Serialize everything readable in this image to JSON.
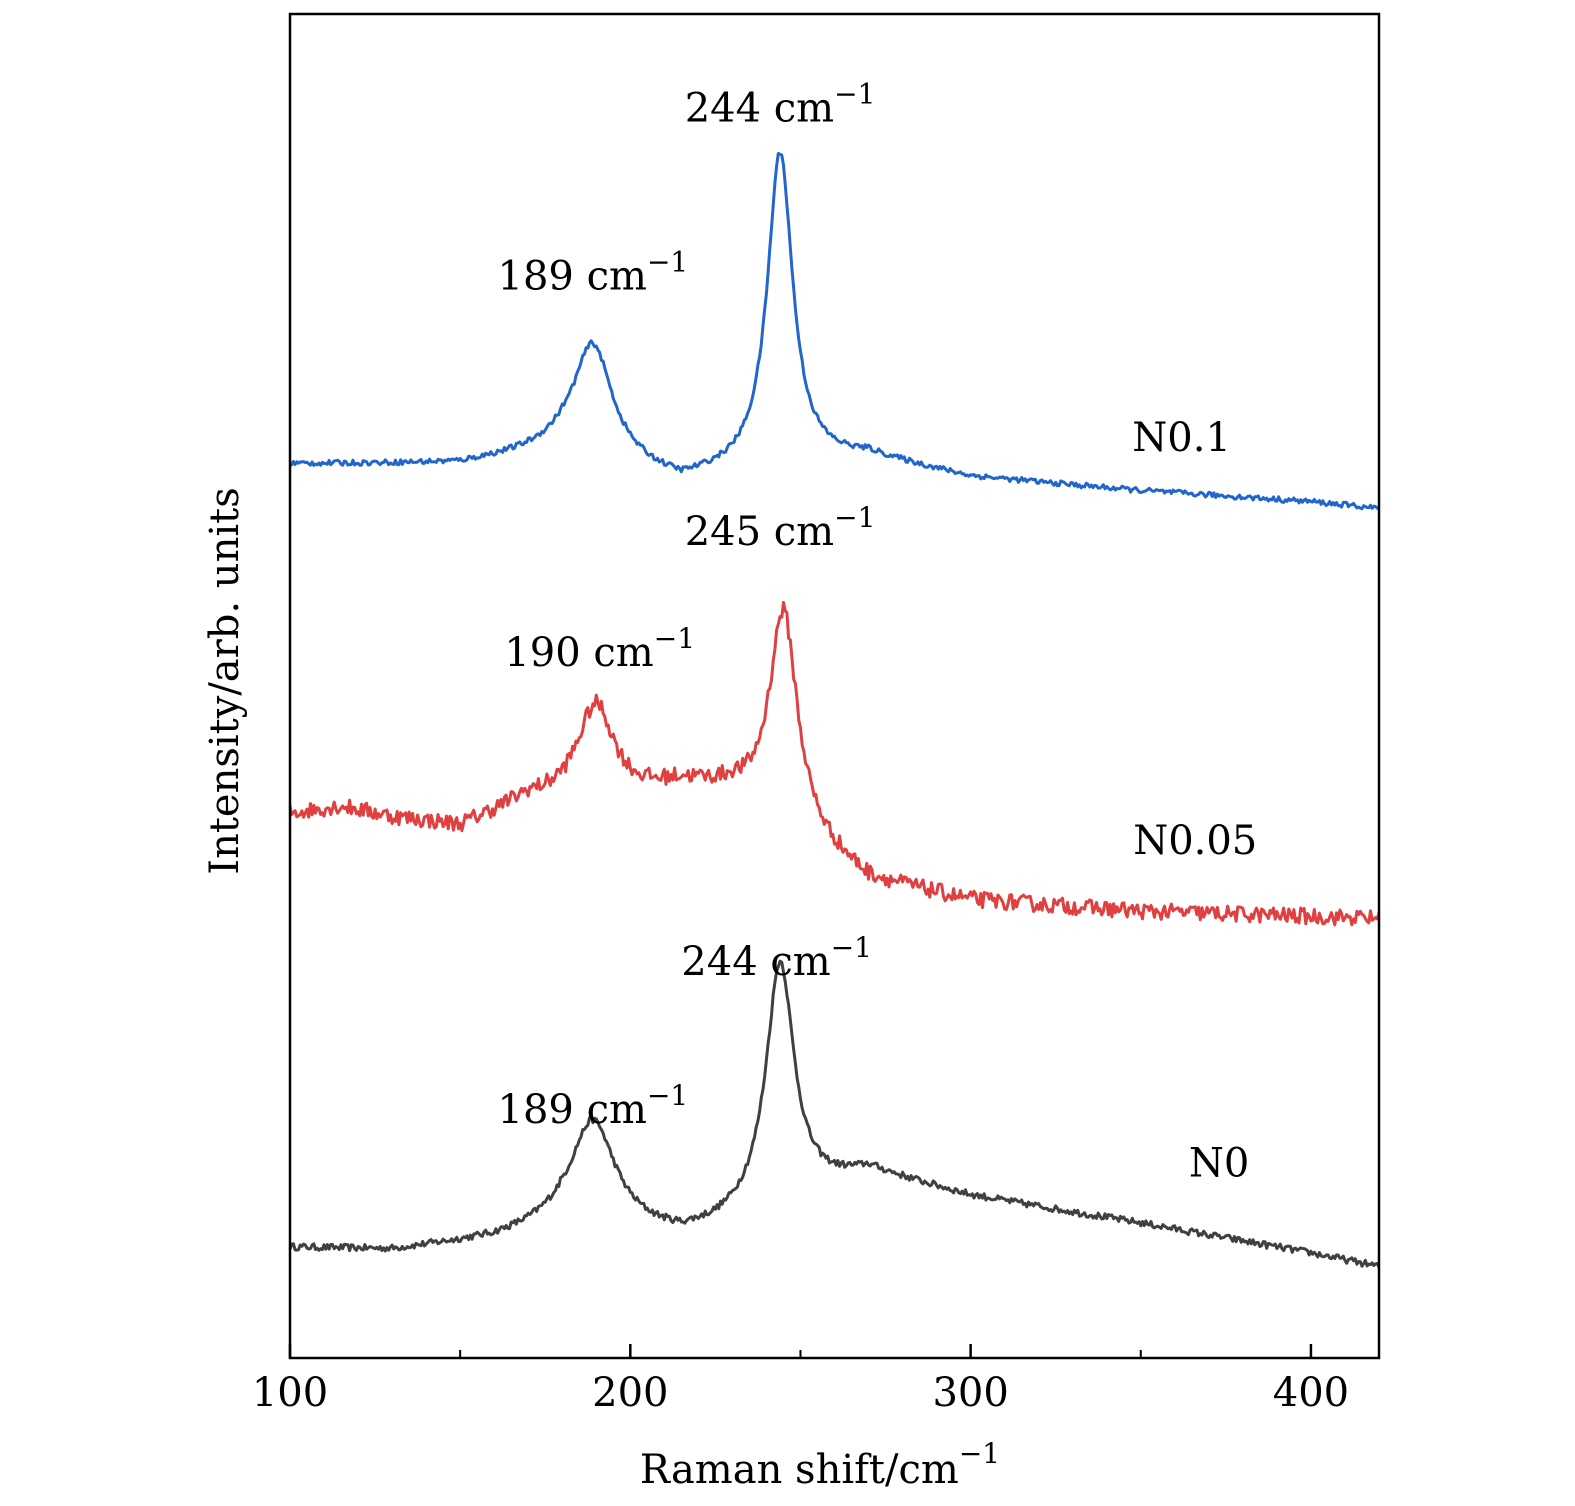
{
  "chart_data": {
    "type": "line",
    "title": "",
    "xlabel": "Raman shift/cm",
    "xlabel_sup": "−1",
    "ylabel": "Intensity/arb. units",
    "xlim": [
      100,
      420
    ],
    "ylim": [
      0,
      10
    ],
    "x_ticks": [
      100,
      200,
      300,
      400
    ],
    "x_minor_ticks": [
      150,
      250,
      350
    ],
    "y_ticks": [],
    "grid": false,
    "legend": "none",
    "series": [
      {
        "name": "N0",
        "color": "#404040",
        "baseline": [
          [
            100,
            0.82
          ],
          [
            130,
            0.8
          ],
          [
            160,
            0.88
          ],
          [
            180,
            0.98
          ],
          [
            215,
            0.9
          ],
          [
            225,
            0.96
          ],
          [
            270,
            1.38
          ],
          [
            300,
            1.2
          ],
          [
            350,
            1.0
          ],
          [
            400,
            0.78
          ],
          [
            420,
            0.68
          ]
        ],
        "peaks": [
          {
            "x": 189,
            "y": 0.8,
            "width": 8
          },
          {
            "x": 244,
            "y": 1.8,
            "width": 5
          }
        ],
        "noise": 0.025
      },
      {
        "name": "N0.05",
        "color": "#e04040",
        "baseline": [
          [
            100,
            4.05
          ],
          [
            115,
            4.1
          ],
          [
            130,
            4.02
          ],
          [
            150,
            3.95
          ],
          [
            170,
            4.15
          ],
          [
            195,
            4.1
          ],
          [
            215,
            4.25
          ],
          [
            230,
            4.2
          ],
          [
            270,
            3.55
          ],
          [
            300,
            3.4
          ],
          [
            350,
            3.32
          ],
          [
            420,
            3.27
          ]
        ],
        "peaks": [
          {
            "x": 190,
            "y": 0.75,
            "width": 7
          },
          {
            "x": 245,
            "y": 1.6,
            "width": 5
          }
        ],
        "noise": 0.06
      },
      {
        "name": "N0.1",
        "color": "#2266cc",
        "baseline": [
          [
            100,
            6.65
          ],
          [
            150,
            6.65
          ],
          [
            180,
            6.75
          ],
          [
            215,
            6.5
          ],
          [
            225,
            6.55
          ],
          [
            270,
            6.7
          ],
          [
            300,
            6.55
          ],
          [
            350,
            6.45
          ],
          [
            400,
            6.37
          ],
          [
            420,
            6.32
          ]
        ],
        "peaks": [
          {
            "x": 189,
            "y": 0.85,
            "width": 7
          },
          {
            "x": 244,
            "y": 2.35,
            "width": 4.5
          }
        ],
        "noise": 0.02
      }
    ],
    "annotations": [
      {
        "text": "244 cm",
        "sup": "−1",
        "x": 244,
        "y": 9.2
      },
      {
        "text": "189 cm",
        "sup": "−1",
        "x": 189,
        "y": 7.95
      },
      {
        "text": "N0.1",
        "x": 362,
        "y": 6.75
      },
      {
        "text": "245 cm",
        "sup": "−1",
        "x": 244,
        "y": 6.05
      },
      {
        "text": "190 cm",
        "sup": "−1",
        "x": 191,
        "y": 5.15
      },
      {
        "text": "N0.05",
        "x": 366,
        "y": 3.75
      },
      {
        "text": "244 cm",
        "sup": "−1",
        "x": 243,
        "y": 2.85
      },
      {
        "text": "189 cm",
        "sup": "−1",
        "x": 189,
        "y": 1.75
      },
      {
        "text": "N0",
        "x": 373,
        "y": 1.35
      }
    ]
  }
}
